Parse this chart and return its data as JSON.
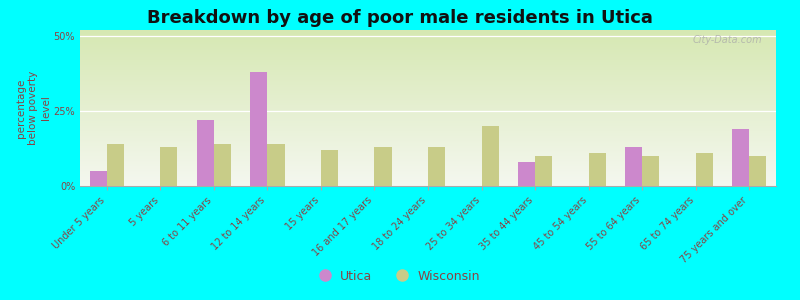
{
  "title": "Breakdown by age of poor male residents in Utica",
  "ylabel": "percentage\nbelow poverty\nlevel",
  "background_color": "#00ffff",
  "plot_bg_color": "#eef2d8",
  "categories": [
    "Under 5 years",
    "5 years",
    "6 to 11 years",
    "12 to 14 years",
    "15 years",
    "16 and 17 years",
    "18 to 24 years",
    "25 to 34 years",
    "35 to 44 years",
    "45 to 54 years",
    "55 to 64 years",
    "65 to 74 years",
    "75 years and over"
  ],
  "utica": [
    5,
    0,
    22,
    38,
    0,
    0,
    0,
    0,
    8,
    0,
    13,
    0,
    19
  ],
  "wisconsin": [
    14,
    13,
    14,
    14,
    12,
    13,
    13,
    20,
    10,
    11,
    10,
    11,
    10
  ],
  "utica_color": "#cc88cc",
  "wisconsin_color": "#c8cc88",
  "ylim": [
    0,
    52
  ],
  "yticks": [
    0,
    25,
    50
  ],
  "ytick_labels": [
    "0%",
    "25%",
    "50%"
  ],
  "title_fontsize": 13,
  "axis_label_fontsize": 7.5,
  "tick_fontsize": 7,
  "legend_fontsize": 9,
  "label_color": "#884444",
  "watermark": "City-Data.com"
}
